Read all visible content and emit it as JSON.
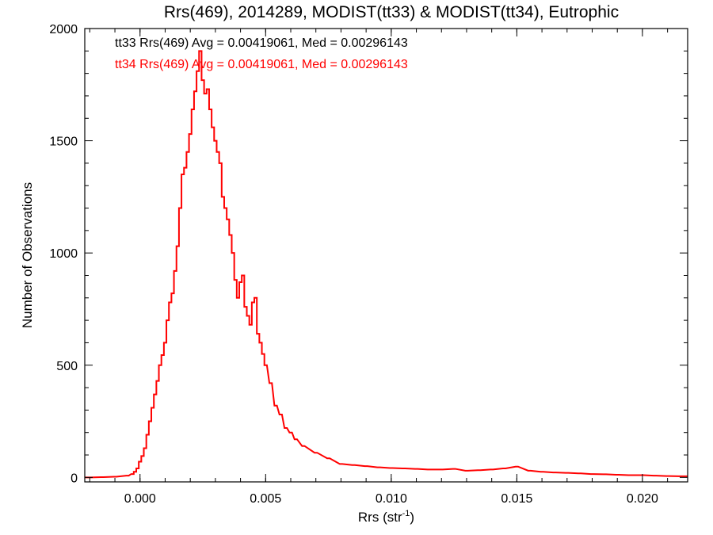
{
  "chart_data": {
    "type": "line",
    "title": "Rrs(469), 2014289, MODIST(tt33) & MODIST(tt34), Eutrophic",
    "xlabel_base": "Rrs (str",
    "xlabel_sup": "-1",
    "xlabel_end": ")",
    "ylabel": "Number of Observations",
    "xlim": [
      -0.0022,
      0.0218
    ],
    "ylim": [
      -20,
      2000
    ],
    "x_ticks": [
      "0.000",
      "0.005",
      "0.010",
      "0.015",
      "0.020"
    ],
    "x_tick_values": [
      0.0,
      0.005,
      0.01,
      0.015,
      0.02
    ],
    "y_ticks": [
      "0",
      "500",
      "1000",
      "1500",
      "2000"
    ],
    "y_tick_values": [
      0,
      500,
      1000,
      1500,
      2000
    ],
    "grid": false,
    "annotations": [
      {
        "text": "tt33 Rrs(469) Avg = 0.00419061, Med = 0.00296143",
        "color": "#000000"
      },
      {
        "text": "tt34 Rrs(469) Avg = 0.00419061, Med = 0.00296143",
        "color": "#ff0000"
      }
    ],
    "series": [
      {
        "color": "#ff0000",
        "bin_width": 0.0001,
        "x": [
          -0.002,
          -0.0015,
          -0.001,
          -0.0005,
          -0.0003,
          -0.0002,
          -0.0001,
          0.0,
          0.0001,
          0.0002,
          0.0003,
          0.0004,
          0.0005,
          0.0006,
          0.0007,
          0.0008,
          0.0009,
          0.001,
          0.0011,
          0.0012,
          0.0013,
          0.0014,
          0.0015,
          0.0016,
          0.0017,
          0.0018,
          0.0019,
          0.002,
          0.0021,
          0.0022,
          0.0023,
          0.0024,
          0.0025,
          0.0026,
          0.0027,
          0.0028,
          0.0029,
          0.003,
          0.0031,
          0.0032,
          0.0033,
          0.0034,
          0.0035,
          0.0036,
          0.0037,
          0.0038,
          0.0039,
          0.004,
          0.0041,
          0.0042,
          0.0043,
          0.0044,
          0.0045,
          0.0046,
          0.0047,
          0.0048,
          0.0049,
          0.005,
          0.0052,
          0.0054,
          0.0056,
          0.0058,
          0.006,
          0.0062,
          0.0065,
          0.007,
          0.0075,
          0.008,
          0.0085,
          0.009,
          0.0095,
          0.01,
          0.0105,
          0.011,
          0.0115,
          0.012,
          0.0125,
          0.013,
          0.0135,
          0.014,
          0.0145,
          0.015,
          0.0155,
          0.016,
          0.0165,
          0.017,
          0.0175,
          0.018,
          0.0185,
          0.019,
          0.0195,
          0.02,
          0.0205,
          0.021,
          0.0215
        ],
        "y": [
          0,
          1,
          3,
          8,
          15,
          25,
          40,
          70,
          95,
          130,
          190,
          250,
          310,
          370,
          430,
          500,
          545,
          600,
          700,
          780,
          820,
          920,
          1030,
          1200,
          1350,
          1380,
          1450,
          1530,
          1640,
          1720,
          1810,
          1900,
          1770,
          1710,
          1730,
          1640,
          1560,
          1500,
          1450,
          1400,
          1250,
          1200,
          1150,
          1080,
          1000,
          880,
          800,
          870,
          900,
          760,
          720,
          680,
          780,
          800,
          640,
          600,
          550,
          500,
          420,
          320,
          280,
          220,
          200,
          170,
          140,
          110,
          85,
          60,
          55,
          50,
          45,
          42,
          40,
          38,
          35,
          35,
          38,
          30,
          32,
          35,
          40,
          48,
          30,
          25,
          22,
          20,
          18,
          15,
          14,
          12,
          10,
          10,
          8,
          6,
          5
        ]
      }
    ]
  }
}
